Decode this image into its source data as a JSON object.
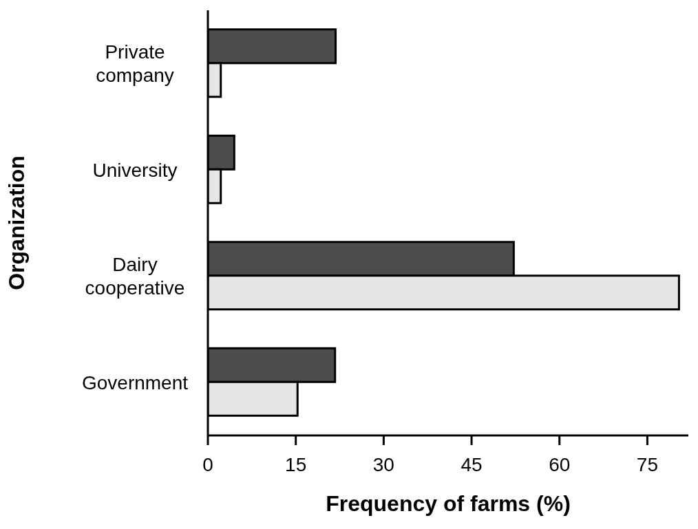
{
  "chart_data": {
    "type": "bar",
    "orientation": "horizontal",
    "xlabel": "Frequency of farms (%)",
    "ylabel": "Organization",
    "categories": [
      "Private company",
      "University",
      "Dairy cooperative",
      "Government"
    ],
    "series": [
      {
        "color": "#4d4d4d",
        "values": [
          21.8,
          4.5,
          52.2,
          21.7
        ]
      },
      {
        "color": "#e6e6e6",
        "values": [
          2.2,
          2.2,
          80.4,
          15.3
        ]
      }
    ],
    "xlim": [
      0,
      82
    ],
    "xticks": [
      0,
      15,
      30,
      45,
      60,
      75
    ],
    "grid": false,
    "legend": false
  }
}
